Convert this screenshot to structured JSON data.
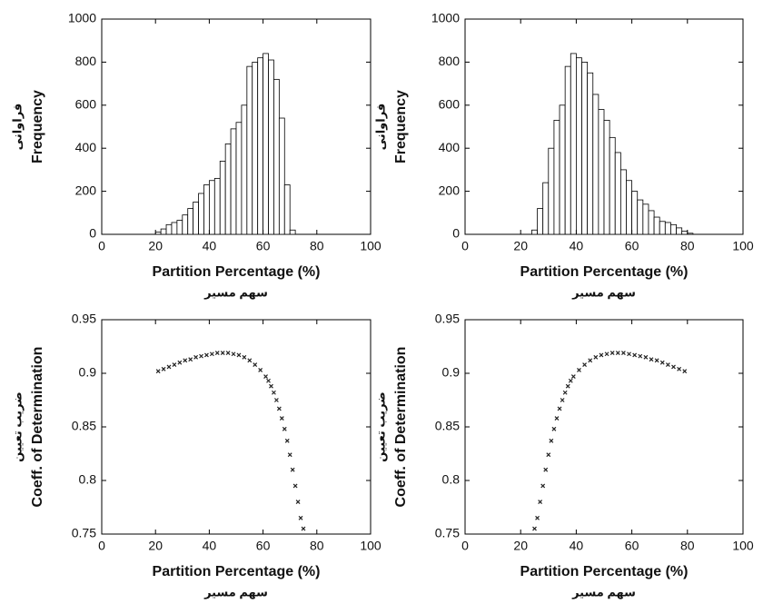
{
  "chart_data": [
    {
      "type": "histogram",
      "ylabel": "Frequency",
      "ylabel_fa": "فراوانی",
      "xlabel": "Partition Percentage (%)",
      "xlabel_fa": "سهم مسیر",
      "bins": [
        20,
        22,
        24,
        26,
        28,
        30,
        32,
        34,
        36,
        38,
        40,
        42,
        44,
        46,
        48,
        50,
        52,
        54,
        56,
        58,
        60,
        62,
        64,
        66,
        68,
        70,
        72
      ],
      "values": [
        10,
        25,
        45,
        55,
        65,
        90,
        120,
        150,
        190,
        230,
        250,
        260,
        340,
        420,
        490,
        520,
        600,
        780,
        800,
        820,
        840,
        810,
        720,
        540,
        230,
        20
      ],
      "color": "#ffffff",
      "xlim": [
        0,
        100
      ],
      "xticks": [
        0,
        20,
        40,
        60,
        80,
        100
      ],
      "ylim": [
        0,
        1000
      ],
      "yticks": [
        0,
        200,
        400,
        600,
        800,
        1000
      ]
    },
    {
      "type": "histogram",
      "ylabel": "Frequency",
      "ylabel_fa": "فراوانی",
      "xlabel": "Partition Percentage (%)",
      "xlabel_fa": "سهم مسیر",
      "bins": [
        24,
        26,
        28,
        30,
        32,
        34,
        36,
        38,
        40,
        42,
        44,
        46,
        48,
        50,
        52,
        54,
        56,
        58,
        60,
        62,
        64,
        66,
        68,
        70,
        72,
        74,
        76,
        78,
        80,
        82
      ],
      "values": [
        20,
        120,
        240,
        400,
        530,
        600,
        780,
        840,
        820,
        800,
        750,
        650,
        580,
        530,
        450,
        380,
        300,
        250,
        200,
        160,
        140,
        110,
        80,
        60,
        55,
        45,
        30,
        15,
        5
      ],
      "color": "#ffffff",
      "xlim": [
        0,
        100
      ],
      "xticks": [
        0,
        20,
        40,
        60,
        80,
        100
      ],
      "ylim": [
        0,
        1000
      ],
      "yticks": [
        0,
        200,
        400,
        600,
        800,
        1000
      ]
    },
    {
      "type": "scatter",
      "ylabel": "Coeff. of Determination",
      "ylabel_fa": "ضریب تعیین",
      "xlabel": "Partition Percentage (%)",
      "xlabel_fa": "سهم مسیر",
      "x": [
        21,
        23,
        25,
        27,
        29,
        31,
        33,
        35,
        37,
        39,
        41,
        43,
        45,
        47,
        49,
        51,
        53,
        55,
        57,
        59,
        61,
        62,
        63,
        64,
        65,
        66,
        67,
        68,
        69,
        70,
        71,
        72,
        73,
        74,
        75
      ],
      "values": [
        0.902,
        0.904,
        0.906,
        0.908,
        0.91,
        0.912,
        0.913,
        0.915,
        0.916,
        0.917,
        0.918,
        0.919,
        0.919,
        0.919,
        0.918,
        0.917,
        0.915,
        0.912,
        0.908,
        0.903,
        0.897,
        0.893,
        0.888,
        0.882,
        0.875,
        0.867,
        0.858,
        0.848,
        0.837,
        0.824,
        0.81,
        0.795,
        0.78,
        0.765,
        0.755
      ],
      "color": "#222222",
      "xlim": [
        0,
        100
      ],
      "xticks": [
        0,
        20,
        40,
        60,
        80,
        100
      ],
      "ylim": [
        0.75,
        0.95
      ],
      "yticks": [
        0.75,
        0.8,
        0.85,
        0.9,
        0.95
      ]
    },
    {
      "type": "scatter",
      "ylabel": "Coeff. of Determination",
      "ylabel_fa": "ضریب تعیین",
      "xlabel": "Partition Percentage (%)",
      "xlabel_fa": "سهم مسیر",
      "x": [
        25,
        26,
        27,
        28,
        29,
        30,
        31,
        32,
        33,
        34,
        35,
        36,
        37,
        38,
        39,
        41,
        43,
        45,
        47,
        49,
        51,
        53,
        55,
        57,
        59,
        61,
        63,
        65,
        67,
        69,
        71,
        73,
        75,
        77,
        79
      ],
      "values": [
        0.755,
        0.765,
        0.78,
        0.795,
        0.81,
        0.824,
        0.837,
        0.848,
        0.858,
        0.867,
        0.875,
        0.882,
        0.888,
        0.893,
        0.897,
        0.903,
        0.908,
        0.912,
        0.915,
        0.917,
        0.918,
        0.919,
        0.919,
        0.919,
        0.918,
        0.917,
        0.916,
        0.915,
        0.913,
        0.912,
        0.91,
        0.908,
        0.906,
        0.904,
        0.902
      ],
      "color": "#222222",
      "xlim": [
        0,
        100
      ],
      "xticks": [
        0,
        20,
        40,
        60,
        80,
        100
      ],
      "ylim": [
        0.75,
        0.95
      ],
      "yticks": [
        0.75,
        0.8,
        0.85,
        0.9,
        0.95
      ]
    }
  ]
}
